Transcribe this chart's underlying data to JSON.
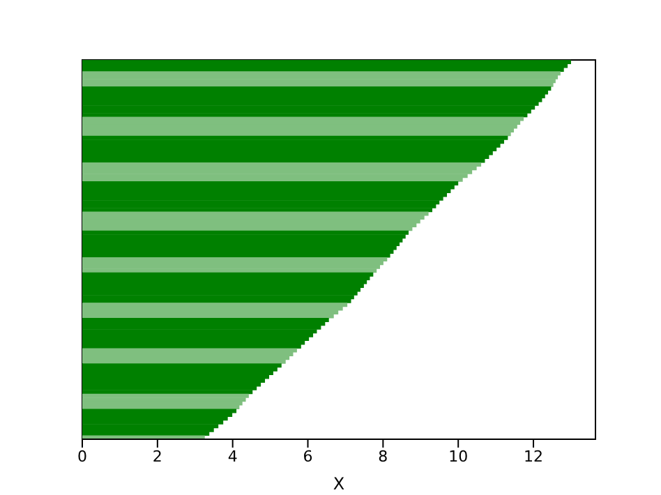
{
  "chart_data": {
    "type": "bar",
    "orientation": "horizontal",
    "xlabel": "X",
    "tick_labels": "x",
    "categories": [
      null,
      null,
      null,
      null,
      null,
      null,
      null,
      null,
      null,
      null,
      null,
      null,
      null,
      null,
      null,
      null,
      null,
      null,
      null,
      null,
      null,
      null,
      null,
      null,
      null,
      null,
      null,
      null,
      null,
      null,
      null,
      null,
      null,
      null,
      null,
      null,
      null,
      null,
      null,
      null,
      null,
      null,
      null,
      null,
      null,
      null,
      null,
      null,
      null,
      null,
      null,
      null,
      null,
      null,
      null,
      null,
      null,
      null,
      null,
      null,
      null,
      null,
      null,
      null,
      null,
      null,
      null,
      null,
      null,
      null,
      null,
      null,
      null,
      null,
      null,
      null,
      null,
      null,
      null,
      null,
      null,
      null,
      null,
      null,
      null,
      null,
      null,
      null,
      null,
      null,
      null,
      null,
      null,
      null,
      null,
      null,
      null,
      null,
      null,
      null
    ],
    "values": [
      13.0,
      12.91,
      12.81,
      12.72,
      12.65,
      12.59,
      12.53,
      12.47,
      12.39,
      12.31,
      12.23,
      12.14,
      12.04,
      11.94,
      11.84,
      11.74,
      11.65,
      11.57,
      11.48,
      11.4,
      11.32,
      11.22,
      11.12,
      11.02,
      10.92,
      10.82,
      10.71,
      10.61,
      10.49,
      10.37,
      10.25,
      10.12,
      10.0,
      9.9,
      9.8,
      9.7,
      9.6,
      9.5,
      9.41,
      9.31,
      9.21,
      9.1,
      8.99,
      8.89,
      8.78,
      8.68,
      8.6,
      8.52,
      8.44,
      8.36,
      8.28,
      8.19,
      8.11,
      8.01,
      7.92,
      7.83,
      7.74,
      7.65,
      7.57,
      7.49,
      7.4,
      7.32,
      7.23,
      7.15,
      7.05,
      6.93,
      6.81,
      6.69,
      6.56,
      6.46,
      6.35,
      6.24,
      6.14,
      6.03,
      5.92,
      5.82,
      5.71,
      5.61,
      5.51,
      5.41,
      5.3,
      5.19,
      5.08,
      4.97,
      4.86,
      4.75,
      4.64,
      4.53,
      4.43,
      4.35,
      4.26,
      4.18,
      4.1,
      3.99,
      3.87,
      3.75,
      3.62,
      3.5,
      3.38,
      3.26
    ],
    "colors": [
      "#008000",
      "#008000",
      "#008000",
      "#7fbf7f",
      "#7fbf7f",
      "#7fbf7f",
      "#7fbf7f",
      "#008000",
      "#008000",
      "#008000",
      "#008000",
      "#008000",
      "#008000",
      "#008000",
      "#008000",
      "#7fbf7f",
      "#7fbf7f",
      "#7fbf7f",
      "#7fbf7f",
      "#7fbf7f",
      "#008000",
      "#008000",
      "#008000",
      "#008000",
      "#008000",
      "#008000",
      "#008000",
      "#7fbf7f",
      "#7fbf7f",
      "#7fbf7f",
      "#7fbf7f",
      "#7fbf7f",
      "#008000",
      "#008000",
      "#008000",
      "#008000",
      "#008000",
      "#008000",
      "#008000",
      "#008000",
      "#7fbf7f",
      "#7fbf7f",
      "#7fbf7f",
      "#7fbf7f",
      "#7fbf7f",
      "#008000",
      "#008000",
      "#008000",
      "#008000",
      "#008000",
      "#008000",
      "#008000",
      "#7fbf7f",
      "#7fbf7f",
      "#7fbf7f",
      "#7fbf7f",
      "#008000",
      "#008000",
      "#008000",
      "#008000",
      "#008000",
      "#008000",
      "#008000",
      "#008000",
      "#7fbf7f",
      "#7fbf7f",
      "#7fbf7f",
      "#7fbf7f",
      "#008000",
      "#008000",
      "#008000",
      "#008000",
      "#008000",
      "#008000",
      "#008000",
      "#008000",
      "#7fbf7f",
      "#7fbf7f",
      "#7fbf7f",
      "#7fbf7f",
      "#008000",
      "#008000",
      "#008000",
      "#008000",
      "#008000",
      "#008000",
      "#008000",
      "#008000",
      "#7fbf7f",
      "#7fbf7f",
      "#7fbf7f",
      "#7fbf7f",
      "#008000",
      "#008000",
      "#008000",
      "#008000",
      "#008000",
      "#008000",
      "#008000",
      "#7fbf7f"
    ],
    "xlim": [
      0,
      13.65
    ],
    "xticks": [
      0,
      2,
      4,
      6,
      8,
      10,
      12
    ]
  }
}
